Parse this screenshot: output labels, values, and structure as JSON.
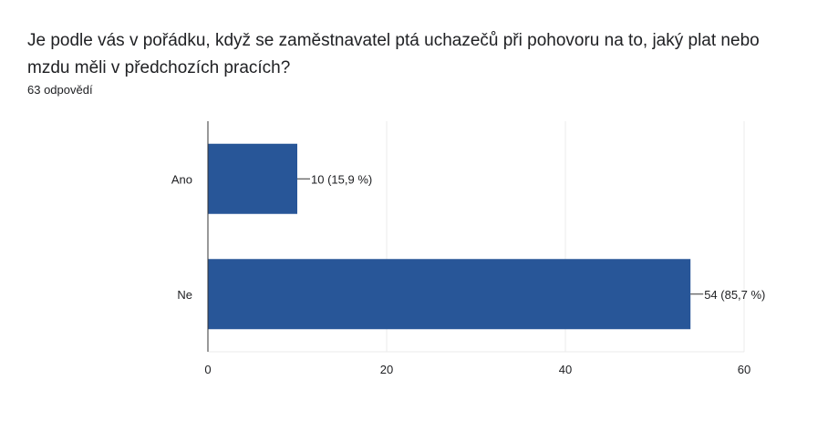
{
  "question": {
    "title": "Je podle vás v pořádku, když se zaměstnavatel ptá uchazečů při pohovoru na to, jaký plat nebo mzdu měli v předchozích pracích?",
    "response_count": "63 odpovědí"
  },
  "colors": {
    "bar": "#285698",
    "grid": "#ebebeb",
    "axis": "#333333"
  },
  "chart_data": {
    "type": "bar",
    "orientation": "horizontal",
    "categories": [
      "Ano",
      "Ne"
    ],
    "values": [
      10,
      54
    ],
    "data_labels": [
      "10 (15,9 %)",
      "54 (85,7 %)"
    ],
    "xlim": [
      0,
      60
    ],
    "xticks": [
      0,
      20,
      40,
      60
    ],
    "xlabel": "",
    "ylabel": "",
    "grid": true,
    "legend": "none"
  }
}
